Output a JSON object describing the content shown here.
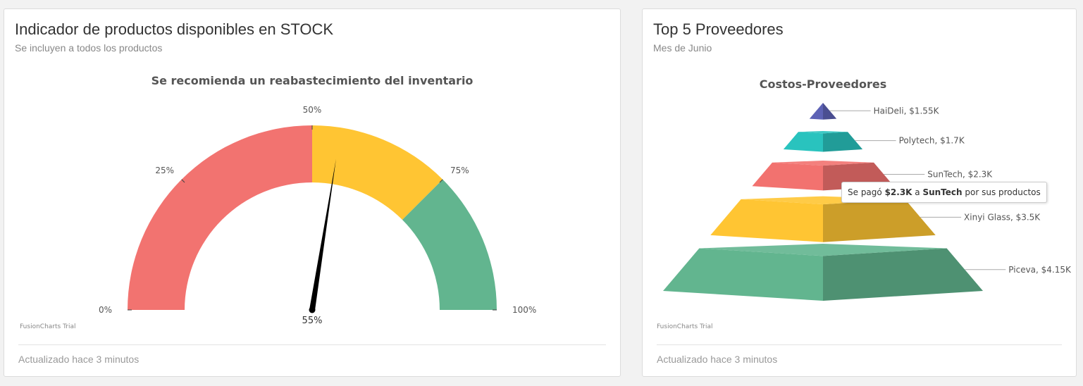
{
  "gauge_card": {
    "title": "Indicador de productos disponibles en STOCK",
    "subtitle": "Se incluyen a todos los productos",
    "footer": "Actualizado hace 3 minutos",
    "watermark": "FusionCharts Trial"
  },
  "pyramid_card": {
    "title": "Top 5 Proveedores",
    "subtitle": "Mes de Junio",
    "footer": "Actualizado hace 3 minutos",
    "watermark": "FusionCharts Trial",
    "tooltip": {
      "prefix": "Se pagó ",
      "amount": "$2.3K",
      "middle": " a ",
      "supplier": "SunTech",
      "suffix": " por sus productos"
    }
  },
  "chart_data": [
    {
      "type": "gauge",
      "title": "Se recomienda un reabastecimiento del inventario",
      "min": 0,
      "max": 100,
      "value": 55,
      "value_label": "55%",
      "tick_labels": [
        "0%",
        "25%",
        "50%",
        "75%",
        "100%"
      ],
      "tick_values": [
        0,
        25,
        50,
        75,
        100
      ],
      "ranges": [
        {
          "from": 0,
          "to": 50,
          "color": "#f27370"
        },
        {
          "from": 50,
          "to": 75,
          "color": "#ffc533"
        },
        {
          "from": 75,
          "to": 100,
          "color": "#62b58f"
        }
      ]
    },
    {
      "type": "pyramid",
      "title": "Costos-Proveedores",
      "series": [
        {
          "label": "HaiDeli, $1.55K",
          "name": "HaiDeli",
          "value": 1550,
          "color": "#5d62b5"
        },
        {
          "label": "Polytech, $1.7K",
          "name": "Polytech",
          "value": 1700,
          "color": "#29c3be"
        },
        {
          "label": "SunTech, $2.3K",
          "name": "SunTech",
          "value": 2300,
          "color": "#f2726f"
        },
        {
          "label": "Xinyi Glass, $3.5K",
          "name": "Xinyi Glass",
          "value": 3500,
          "color": "#ffc533"
        },
        {
          "label": "Piceva, $4.15K",
          "name": "Piceva",
          "value": 4150,
          "color": "#62b58f"
        }
      ]
    }
  ]
}
